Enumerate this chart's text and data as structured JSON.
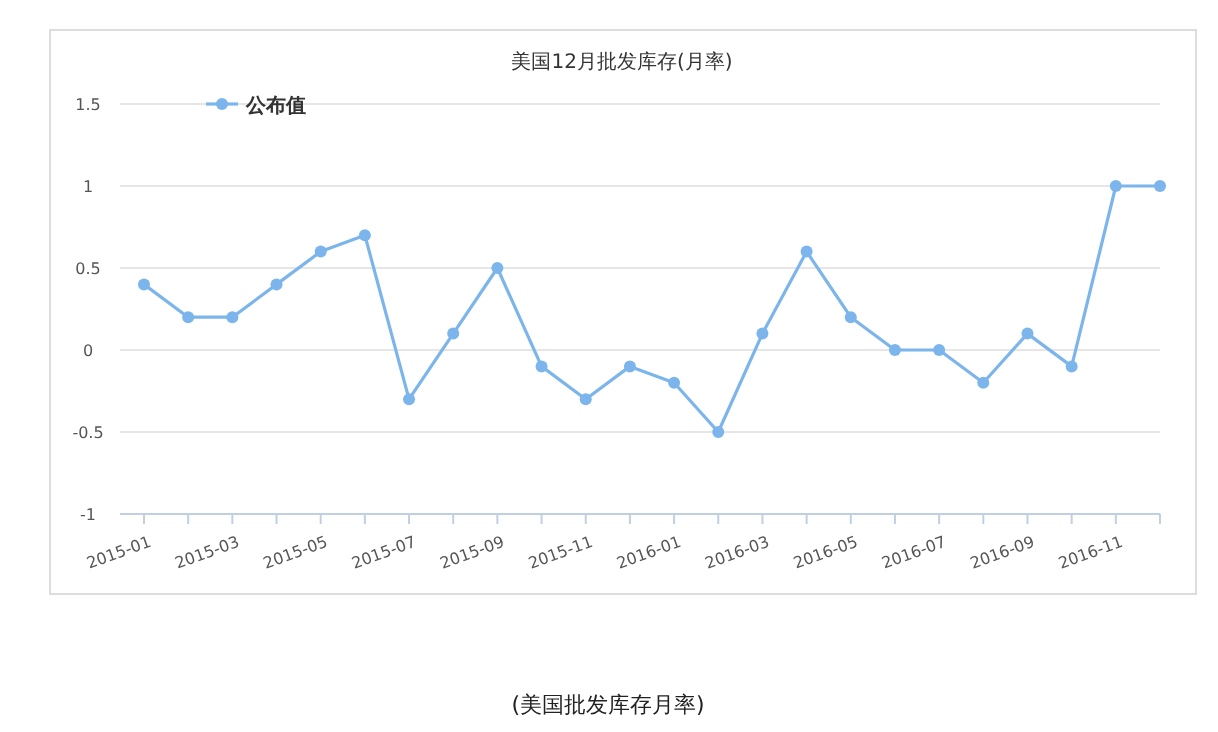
{
  "chart_data": {
    "type": "line",
    "title": "美国12月批发库存(月率)",
    "categories": [
      "2015-01",
      null,
      "2015-03",
      null,
      "2015-05",
      null,
      "2015-07",
      null,
      "2015-09",
      null,
      "2015-11",
      null,
      "2016-01",
      null,
      "2016-03",
      null,
      "2016-05",
      null,
      "2016-07",
      null,
      "2016-09",
      null,
      "2016-11",
      null
    ],
    "series": [
      {
        "name": "公布值",
        "color": "#7cb5ec",
        "values": [
          0.4,
          0.2,
          0.2,
          0.4,
          0.6,
          0.7,
          -0.3,
          0.1,
          0.5,
          -0.1,
          -0.3,
          -0.1,
          -0.2,
          -0.5,
          0.1,
          0.6,
          0.2,
          0,
          0,
          -0.2,
          0.1,
          -0.1,
          1,
          1
        ]
      }
    ],
    "ylim": [
      -1,
      1.5
    ],
    "yticks": [
      -1,
      -0.5,
      0,
      0.5,
      1,
      1.5
    ],
    "grid": "y",
    "legend": "top left",
    "marker": "circle",
    "line_style": "solid",
    "annotations": [
      "(美国批发库存月率)"
    ]
  }
}
